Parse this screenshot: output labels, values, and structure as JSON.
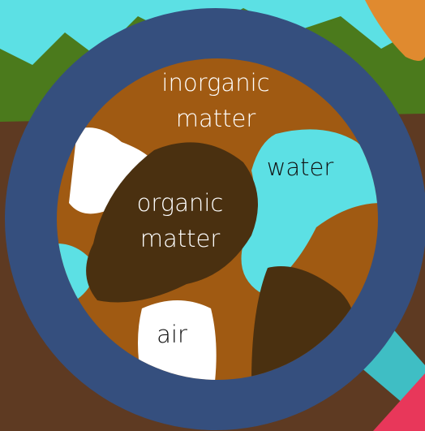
{
  "labels": [
    {
      "lines": [
        "inorganic",
        "matter"
      ]
    },
    {
      "lines": [
        "water"
      ]
    },
    {
      "lines": [
        "organic",
        "matter"
      ]
    },
    {
      "lines": [
        "air"
      ]
    }
  ]
}
